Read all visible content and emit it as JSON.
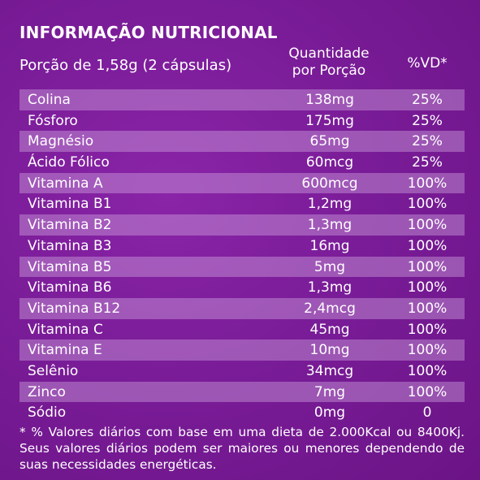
{
  "title": "INFORMAÇÃO NUTRICIONAL",
  "header": {
    "portion": "Porção de 1,58g (2 cápsulas)",
    "quantity_line1": "Quantidade",
    "quantity_line2": "por Porção",
    "vd": "%VD*"
  },
  "rows": [
    {
      "name": "Colina",
      "qty": "138mg",
      "vd": "25%"
    },
    {
      "name": "Fósforo",
      "qty": "175mg",
      "vd": "25%"
    },
    {
      "name": "Magnésio",
      "qty": "65mg",
      "vd": "25%"
    },
    {
      "name": "Ácido Fólico",
      "qty": "60mcg",
      "vd": "25%"
    },
    {
      "name": "Vitamina A",
      "qty": "600mcg",
      "vd": "100%"
    },
    {
      "name": "Vitamina B1",
      "qty": "1,2mg",
      "vd": "100%"
    },
    {
      "name": "Vitamina B2",
      "qty": "1,3mg",
      "vd": "100%"
    },
    {
      "name": "Vitamina B3",
      "qty": "16mg",
      "vd": "100%"
    },
    {
      "name": "Vitamina B5",
      "qty": "5mg",
      "vd": "100%"
    },
    {
      "name": "Vitamina B6",
      "qty": "1,3mg",
      "vd": "100%"
    },
    {
      "name": "Vitamina B12",
      "qty": "2,4mcg",
      "vd": "100%"
    },
    {
      "name": "Vitamina C",
      "qty": "45mg",
      "vd": "100%"
    },
    {
      "name": "Vitamina E",
      "qty": "10mg",
      "vd": "100%"
    },
    {
      "name": "Selênio",
      "qty": "34mcg",
      "vd": "100%"
    },
    {
      "name": "Zinco",
      "qty": "7mg",
      "vd": "100%"
    },
    {
      "name": "Sódio",
      "qty": "0mg",
      "vd": "0"
    }
  ],
  "footnote": "* % Valores diários com base em uma dieta de 2.000Kcal ou 8400Kj. Seus valores diários podem ser maiores ou menores dependendo de suas necessidades energéticas."
}
